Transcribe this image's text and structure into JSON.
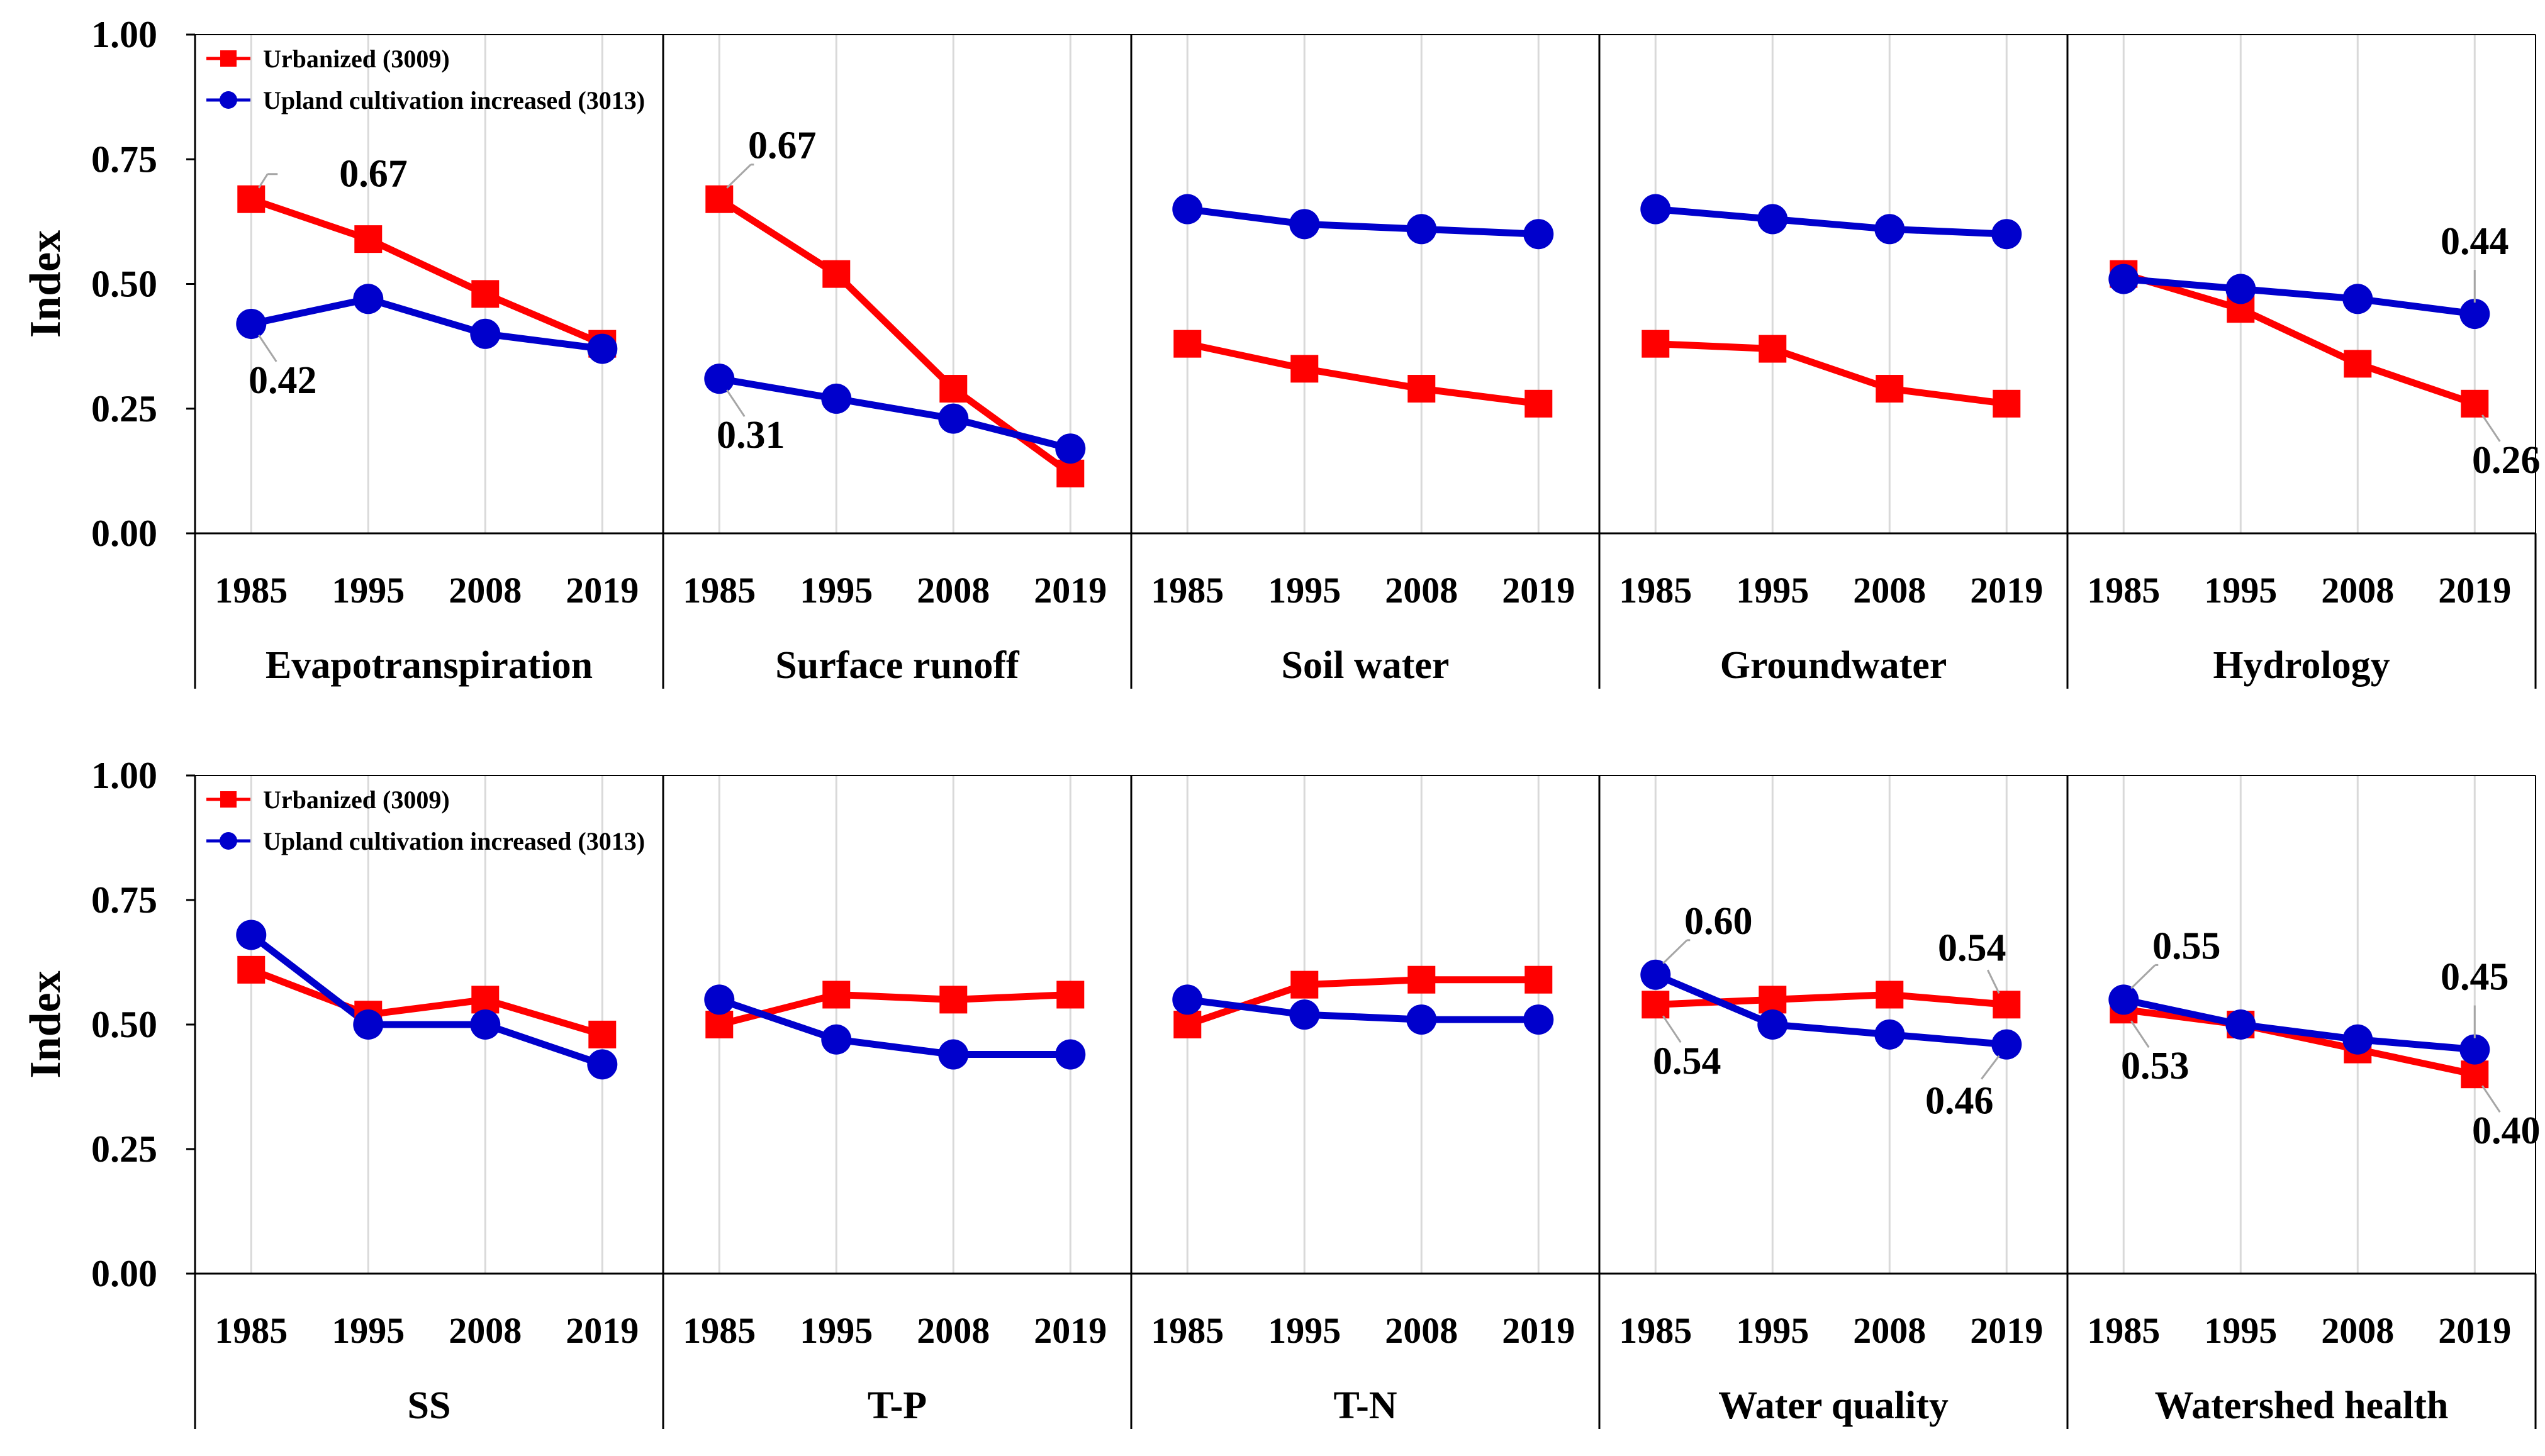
{
  "colors": {
    "urbanized": "#ff0000",
    "upland": "#0000cc",
    "axis": "#000000",
    "grid": "#d9d9d9"
  },
  "chart_data": [
    {
      "type": "line",
      "ylabel": "Index",
      "ylim": [
        0,
        1
      ],
      "yticks": [
        "0.00",
        "0.25",
        "0.50",
        "0.75",
        "1.00"
      ],
      "years": [
        "1985",
        "1995",
        "2008",
        "2019"
      ],
      "legend": {
        "placement": "top-left",
        "entries": [
          "Urbanized (3009)",
          "Upland cultivation increased (3013)"
        ]
      },
      "panels": [
        {
          "title": "Evapotranspiration",
          "series": [
            {
              "name": "Urbanized (3009)",
              "values": [
                0.67,
                0.59,
                0.48,
                0.38
              ]
            },
            {
              "name": "Upland cultivation increased (3013)",
              "values": [
                0.42,
                0.47,
                0.4,
                0.37
              ]
            }
          ],
          "annotations": [
            {
              "series": 0,
              "point": 0,
              "text": "0.67",
              "pos": "right"
            },
            {
              "series": 1,
              "point": 0,
              "text": "0.42",
              "pos": "below"
            }
          ]
        },
        {
          "title": "Surface runoff",
          "series": [
            {
              "name": "Urbanized (3009)",
              "values": [
                0.67,
                0.52,
                0.29,
                0.12
              ]
            },
            {
              "name": "Upland cultivation increased (3013)",
              "values": [
                0.31,
                0.27,
                0.23,
                0.17
              ]
            }
          ],
          "annotations": [
            {
              "series": 0,
              "point": 0,
              "text": "0.67",
              "pos": "upright"
            },
            {
              "series": 1,
              "point": 0,
              "text": "0.31",
              "pos": "below"
            }
          ]
        },
        {
          "title": "Soil water",
          "series": [
            {
              "name": "Urbanized (3009)",
              "values": [
                0.38,
                0.33,
                0.29,
                0.26
              ]
            },
            {
              "name": "Upland cultivation increased (3013)",
              "values": [
                0.65,
                0.62,
                0.61,
                0.6
              ]
            }
          ],
          "annotations": []
        },
        {
          "title": "Groundwater",
          "series": [
            {
              "name": "Urbanized (3009)",
              "values": [
                0.38,
                0.37,
                0.29,
                0.26
              ]
            },
            {
              "name": "Upland cultivation increased (3013)",
              "values": [
                0.65,
                0.63,
                0.61,
                0.6
              ]
            }
          ],
          "annotations": []
        },
        {
          "title": "Hydrology",
          "series": [
            {
              "name": "Urbanized (3009)",
              "values": [
                0.52,
                0.45,
                0.34,
                0.26
              ]
            },
            {
              "name": "Upland cultivation increased (3013)",
              "values": [
                0.51,
                0.49,
                0.47,
                0.44
              ]
            }
          ],
          "annotations": [
            {
              "series": 1,
              "point": 3,
              "text": "0.44",
              "pos": "above"
            },
            {
              "series": 0,
              "point": 3,
              "text": "0.26",
              "pos": "below"
            }
          ]
        }
      ]
    },
    {
      "type": "line",
      "ylabel": "Index",
      "ylim": [
        0,
        1
      ],
      "yticks": [
        "0.00",
        "0.25",
        "0.50",
        "0.75",
        "1.00"
      ],
      "years": [
        "1985",
        "1995",
        "2008",
        "2019"
      ],
      "legend": {
        "placement": "top-left",
        "entries": [
          "Urbanized (3009)",
          "Upland cultivation increased (3013)"
        ]
      },
      "panels": [
        {
          "title": "SS",
          "series": [
            {
              "name": "Urbanized (3009)",
              "values": [
                0.61,
                0.52,
                0.55,
                0.48
              ]
            },
            {
              "name": "Upland cultivation increased (3013)",
              "values": [
                0.68,
                0.5,
                0.5,
                0.42
              ]
            }
          ],
          "annotations": []
        },
        {
          "title": "T-P",
          "series": [
            {
              "name": "Urbanized (3009)",
              "values": [
                0.5,
                0.56,
                0.55,
                0.56
              ]
            },
            {
              "name": "Upland cultivation increased (3013)",
              "values": [
                0.55,
                0.47,
                0.44,
                0.44
              ]
            }
          ],
          "annotations": []
        },
        {
          "title": "T-N",
          "series": [
            {
              "name": "Urbanized (3009)",
              "values": [
                0.5,
                0.58,
                0.59,
                0.59
              ]
            },
            {
              "name": "Upland cultivation increased (3013)",
              "values": [
                0.55,
                0.52,
                0.51,
                0.51
              ]
            }
          ],
          "annotations": []
        },
        {
          "title": "Water quality",
          "series": [
            {
              "name": "Urbanized (3009)",
              "values": [
                0.54,
                0.55,
                0.56,
                0.54
              ]
            },
            {
              "name": "Upland cultivation increased (3013)",
              "values": [
                0.6,
                0.5,
                0.48,
                0.46
              ]
            }
          ],
          "annotations": [
            {
              "series": 1,
              "point": 0,
              "text": "0.60",
              "pos": "upright"
            },
            {
              "series": 0,
              "point": 0,
              "text": "0.54",
              "pos": "below"
            },
            {
              "series": 0,
              "point": 3,
              "text": "0.54",
              "pos": "upleft"
            },
            {
              "series": 1,
              "point": 3,
              "text": "0.46",
              "pos": "downleft"
            }
          ]
        },
        {
          "title": "Watershed health",
          "series": [
            {
              "name": "Urbanized (3009)",
              "values": [
                0.53,
                0.5,
                0.45,
                0.4
              ]
            },
            {
              "name": "Upland cultivation increased (3013)",
              "values": [
                0.55,
                0.5,
                0.47,
                0.45
              ]
            }
          ],
          "annotations": [
            {
              "series": 1,
              "point": 0,
              "text": "0.55",
              "pos": "upright"
            },
            {
              "series": 0,
              "point": 0,
              "text": "0.53",
              "pos": "below"
            },
            {
              "series": 1,
              "point": 3,
              "text": "0.45",
              "pos": "above"
            },
            {
              "series": 0,
              "point": 3,
              "text": "0.40",
              "pos": "below"
            }
          ]
        }
      ]
    }
  ]
}
